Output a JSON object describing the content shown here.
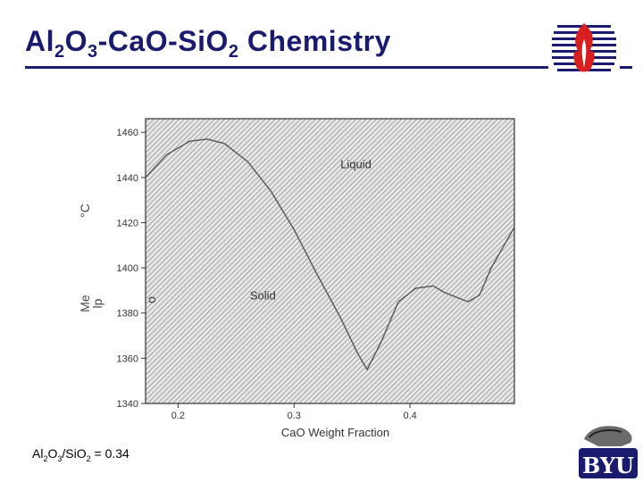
{
  "slide": {
    "title": {
      "al": "Al",
      "al_sub": "2",
      "o": "O",
      "o_sub": "3",
      "rest": "-CaO-Si",
      "o2": "O",
      "o2_sub": "2",
      "tail": " Chemistry"
    },
    "footnote": {
      "al": "Al",
      "al_sub": "2",
      "o": "O",
      "o_sub": "3",
      "si": "/SiO",
      "si_sub": "2",
      "value": " = 0.34"
    },
    "logo_text": "BYU"
  },
  "colors": {
    "title": "#1a1a6e",
    "plot_bg": "#d6d6d6",
    "curve": "#555555",
    "logo_red": "#d81e1e",
    "logo_blue": "#1a1a6e"
  },
  "chart_data": {
    "type": "line",
    "title": "",
    "xlabel": "CaO Weight Fraction",
    "ylabel_fragments": [
      "°C",
      "Me",
      "lp",
      "o"
    ],
    "xlim": [
      0.172,
      0.49
    ],
    "ylim": [
      1340,
      1466
    ],
    "xticks": [
      0.2,
      0.3,
      0.4
    ],
    "xtick_labels": [
      "0.2",
      "0.3",
      "0.4"
    ],
    "yticks": [
      1340,
      1360,
      1380,
      1400,
      1420,
      1440,
      1460
    ],
    "ytick_labels": [
      "1340",
      "1360",
      "1380",
      "1400",
      "1420",
      "1440",
      "1460"
    ],
    "annotations": [
      {
        "text": "Liquid",
        "x": 0.34,
        "y": 1444
      },
      {
        "text": "Solid",
        "x": 0.262,
        "y": 1386
      }
    ],
    "series": [
      {
        "x": [
          0.172,
          0.19,
          0.21,
          0.225,
          0.24,
          0.26,
          0.28,
          0.3,
          0.32,
          0.34,
          0.355,
          0.363,
          0.375,
          0.39,
          0.405,
          0.42,
          0.43,
          0.44,
          0.45,
          0.46,
          0.47,
          0.48,
          0.49
        ],
        "y": [
          1440,
          1450,
          1456,
          1457,
          1455,
          1447,
          1434,
          1417,
          1397,
          1378,
          1362,
          1355,
          1367,
          1385,
          1391,
          1392,
          1389,
          1387,
          1385,
          1388,
          1400,
          1409,
          1418
        ]
      }
    ]
  }
}
